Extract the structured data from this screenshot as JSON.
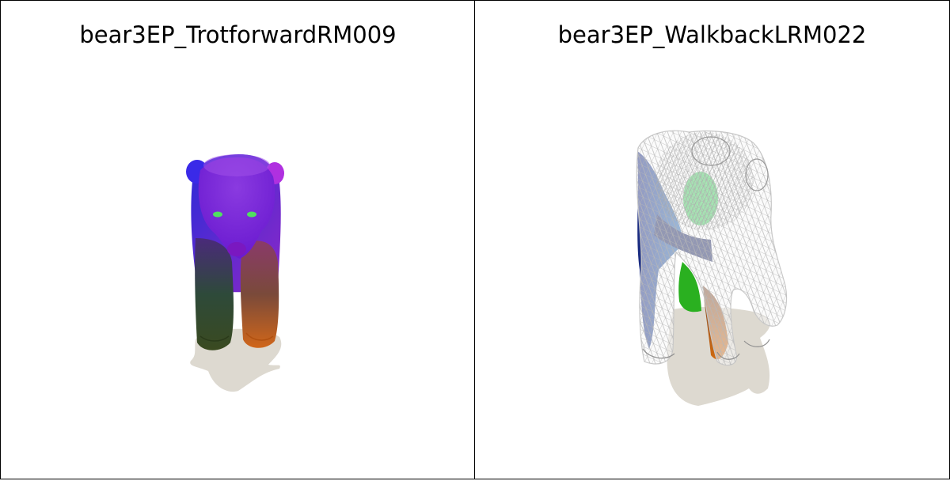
{
  "panels": [
    {
      "title": "bear3EP_TrotforwardRM009",
      "render_style": "solid-colored-mesh"
    },
    {
      "title": "bear3EP_WalkbackLRM022",
      "render_style": "solid-colored-mesh-with-wireframe-overlay"
    }
  ],
  "colors": {
    "shadow": "#ddd9d0",
    "border": "#000000",
    "background": "#ffffff",
    "wireframe": "#f2f2f2"
  }
}
